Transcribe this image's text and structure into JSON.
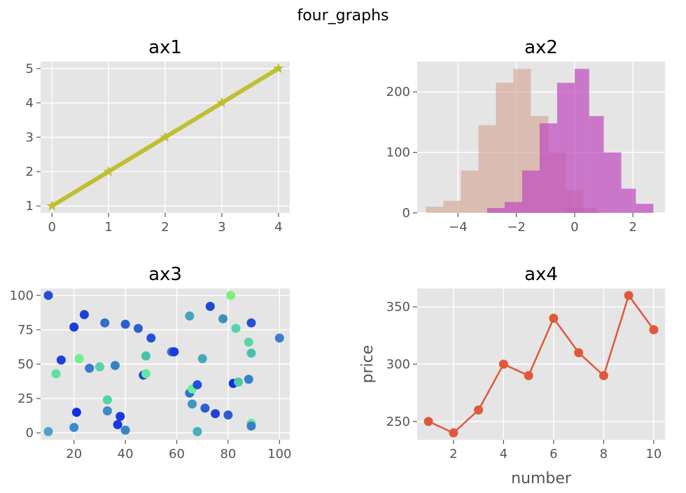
{
  "figure": {
    "suptitle": "four_graphs"
  },
  "chart_data": [
    {
      "type": "line",
      "title": "ax1",
      "xlabel": "",
      "ylabel": "",
      "x": [
        0,
        1,
        2,
        3,
        4
      ],
      "series": [
        {
          "values": [
            1,
            2,
            3,
            4,
            5
          ],
          "color": "#bfbf2f",
          "marker": "star"
        }
      ],
      "xlim": [
        -0.2,
        4.2
      ],
      "ylim": [
        0.8,
        5.2
      ],
      "xticks": [
        0,
        1,
        2,
        3,
        4
      ],
      "yticks": [
        1,
        2,
        3,
        4,
        5
      ],
      "grid": true
    },
    {
      "type": "bar",
      "title": "ax2",
      "xlabel": "",
      "ylabel": "",
      "series": [
        {
          "color": "#d4a091",
          "bins": [
            [
              -5.1,
              -4.5,
              10
            ],
            [
              -4.5,
              -3.9,
              20
            ],
            [
              -3.9,
              -3.3,
              70
            ],
            [
              -3.3,
              -2.7,
              145
            ],
            [
              -2.7,
              -2.1,
              215
            ],
            [
              -2.1,
              -1.5,
              238
            ],
            [
              -1.5,
              -0.9,
              160
            ],
            [
              -0.9,
              -0.3,
              100
            ],
            [
              -0.3,
              0.3,
              38
            ],
            [
              -0.3,
              0.8,
              8
            ]
          ]
        },
        {
          "color": "#bf48bf",
          "bins": [
            [
              -3.0,
              -2.4,
              8
            ],
            [
              -2.4,
              -1.8,
              18
            ],
            [
              -1.8,
              -1.2,
              70
            ],
            [
              -1.2,
              -0.6,
              148
            ],
            [
              -0.6,
              -0.0,
              215
            ],
            [
              0.0,
              0.5,
              238
            ],
            [
              0.5,
              1.0,
              160
            ],
            [
              1.0,
              1.6,
              100
            ],
            [
              1.6,
              2.1,
              40
            ],
            [
              2.1,
              2.7,
              15
            ]
          ]
        }
      ],
      "xlim": [
        -5.4,
        3.1
      ],
      "ylim": [
        0,
        250
      ],
      "xticks": [
        -4,
        -2,
        0,
        2
      ],
      "yticks": [
        0,
        100,
        200
      ],
      "grid": true
    },
    {
      "type": "scatter",
      "title": "ax3",
      "xlabel": "",
      "ylabel": "",
      "points": [
        [
          10,
          100,
          "#2050d0"
        ],
        [
          10,
          1,
          "#4aa3c8"
        ],
        [
          13,
          43,
          "#5ee0a0"
        ],
        [
          15,
          53,
          "#2040d8"
        ],
        [
          20,
          77,
          "#1a3ed8"
        ],
        [
          20,
          4,
          "#3a8ad0"
        ],
        [
          21,
          15,
          "#1030e0"
        ],
        [
          22,
          54,
          "#6ef08a"
        ],
        [
          24,
          86,
          "#1a40d8"
        ],
        [
          26,
          47,
          "#3a7ad0"
        ],
        [
          30,
          48,
          "#58d2a8"
        ],
        [
          32,
          80,
          "#3070c8"
        ],
        [
          33,
          24,
          "#50d6a0"
        ],
        [
          33,
          16,
          "#3c88c8"
        ],
        [
          36,
          49,
          "#3680c8"
        ],
        [
          37,
          6,
          "#1838e0"
        ],
        [
          38,
          12,
          "#1a3ae0"
        ],
        [
          40,
          79,
          "#2c60d0"
        ],
        [
          40,
          2,
          "#3a84c8"
        ],
        [
          45,
          76,
          "#2c60d0"
        ],
        [
          47,
          42,
          "#2040d8"
        ],
        [
          48,
          56,
          "#48c0b0"
        ],
        [
          48,
          43,
          "#62e8a0"
        ],
        [
          50,
          69,
          "#2050d8"
        ],
        [
          58,
          59,
          "#3470c8"
        ],
        [
          59,
          59,
          "#1a38e0"
        ],
        [
          65,
          85,
          "#40a8b8"
        ],
        [
          65,
          29,
          "#3070d0"
        ],
        [
          66,
          32,
          "#6af09a"
        ],
        [
          66,
          21,
          "#3e98c0"
        ],
        [
          68,
          35,
          "#2250d8"
        ],
        [
          68,
          1,
          "#44b0b8"
        ],
        [
          70,
          54,
          "#44a8b8"
        ],
        [
          71,
          18,
          "#2a60d0"
        ],
        [
          73,
          92,
          "#1e48d8"
        ],
        [
          75,
          14,
          "#2040d8"
        ],
        [
          78,
          83,
          "#3e90c0"
        ],
        [
          80,
          13,
          "#2a5ed0"
        ],
        [
          81,
          100,
          "#7cf080"
        ],
        [
          82,
          36,
          "#1030e8"
        ],
        [
          83,
          76,
          "#58d2a8"
        ],
        [
          84,
          37,
          "#50c8a8"
        ],
        [
          88,
          66,
          "#5ad6a4"
        ],
        [
          88,
          39,
          "#3a80c8"
        ],
        [
          89,
          80,
          "#2650d0"
        ],
        [
          89,
          58,
          "#4cc0b0"
        ],
        [
          89,
          7,
          "#66e89c"
        ],
        [
          89,
          5,
          "#3680c8"
        ],
        [
          100,
          69,
          "#3a80c8"
        ]
      ],
      "xlim": [
        7,
        104
      ],
      "ylim": [
        -5,
        105
      ],
      "xticks": [
        20,
        40,
        60,
        80,
        100
      ],
      "yticks": [
        0,
        25,
        50,
        75,
        100
      ],
      "grid": true
    },
    {
      "type": "line",
      "title": "ax4",
      "xlabel": "number",
      "ylabel": "price",
      "x": [
        1,
        2,
        3,
        4,
        5,
        6,
        7,
        8,
        9,
        10
      ],
      "series": [
        {
          "values": [
            250,
            240,
            260,
            300,
            290,
            340,
            310,
            290,
            360,
            330
          ],
          "color": "#e0583a",
          "marker": "circle"
        }
      ],
      "xlim": [
        0.55,
        10.45
      ],
      "ylim": [
        234,
        366
      ],
      "xticks": [
        2,
        4,
        6,
        8,
        10
      ],
      "yticks": [
        250,
        300,
        350
      ],
      "grid": true
    }
  ]
}
